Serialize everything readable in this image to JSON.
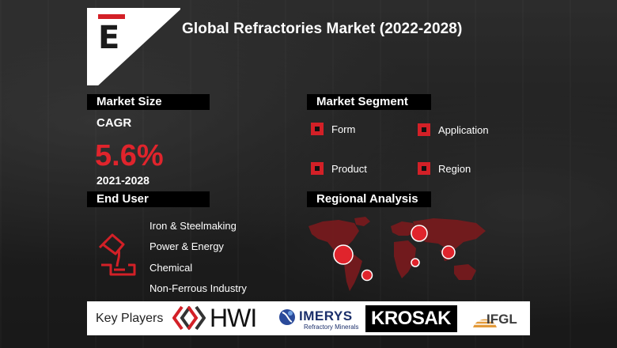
{
  "header": {
    "logo_letter": "E",
    "title": "Global Refractories Market (2022-2028)"
  },
  "market_size": {
    "heading": "Market Size",
    "cagr_label": "CAGR",
    "cagr_value": "5.6%",
    "years": "2021-2028"
  },
  "market_segment": {
    "heading": "Market Segment",
    "items": [
      "Form",
      "Application",
      "Product",
      "Region"
    ]
  },
  "end_user": {
    "heading": "End User",
    "items": [
      "Iron & Steelmaking",
      "Power & Energy",
      "Chemical",
      "Non-Ferrous Industry"
    ]
  },
  "regional": {
    "heading": "Regional Analysis"
  },
  "key_players": {
    "label": "Key Players",
    "hwi": "HWI",
    "imerys": "IMERYS",
    "imerys_sub": "Refractory Minerals",
    "krosak": "KROSAK",
    "ifgl": "IFGL"
  },
  "colors": {
    "accent": "#d32027",
    "heading_bg": "#000000",
    "text": "#ffffff"
  }
}
